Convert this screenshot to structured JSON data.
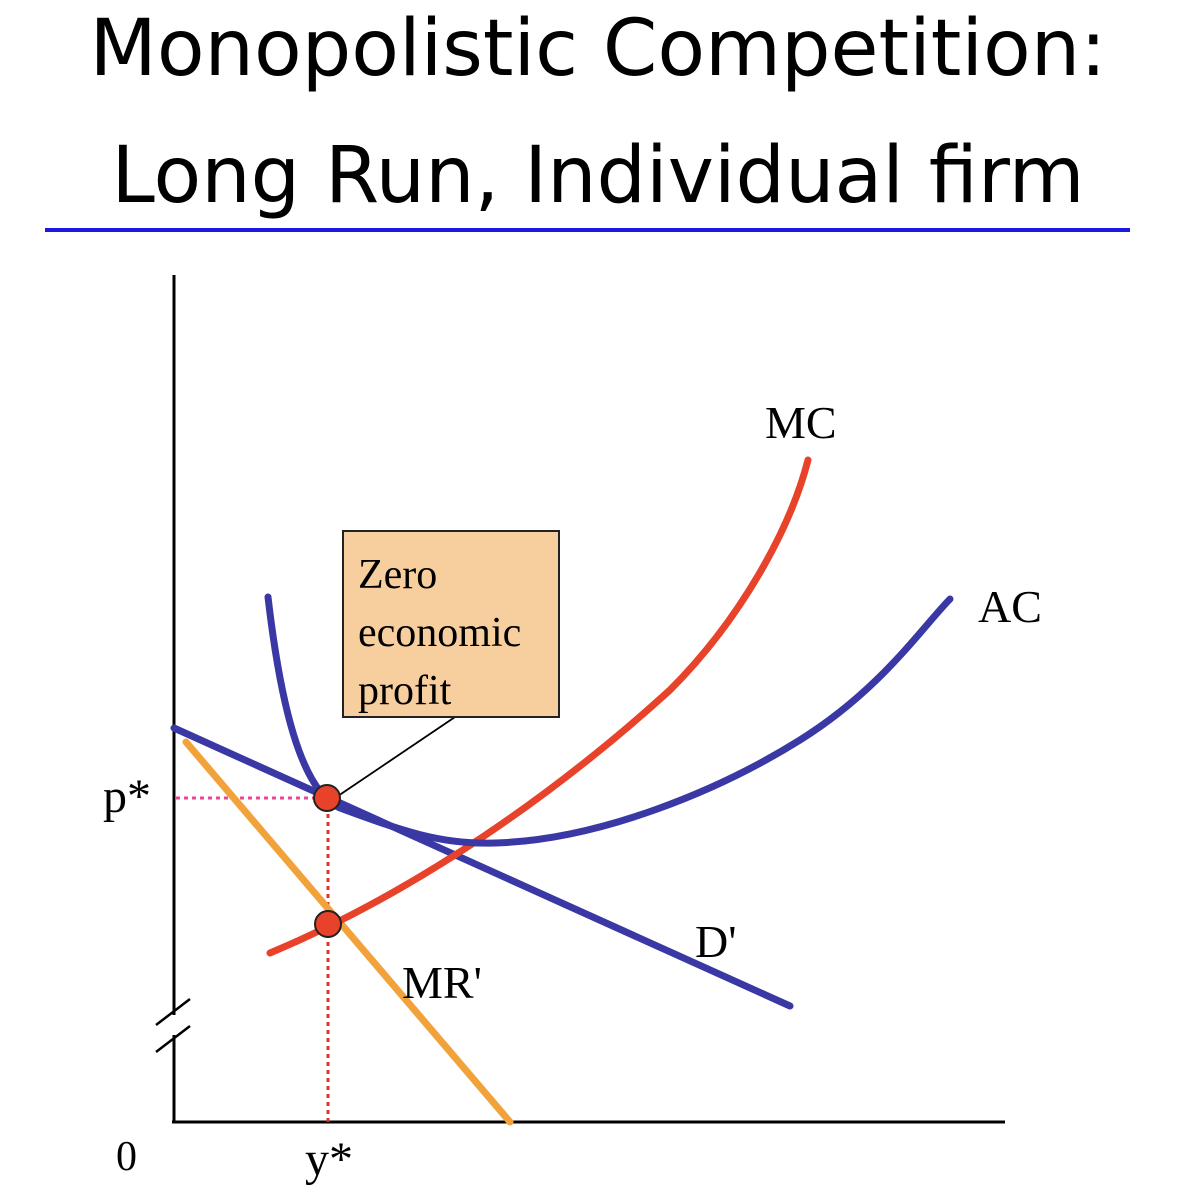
{
  "title": {
    "line1": "Monopolistic Competition:",
    "line2": "Long Run, Individual firm"
  },
  "colors": {
    "title_rule": "#1a1adf",
    "mc": "#e8432a",
    "ac": "#3a38a4",
    "demand": "#3a38a4",
    "mr": "#f2a23a",
    "guide_price": "#e04a9a",
    "guide_quantity": "#e0322a",
    "point_fill": "#e8432a",
    "callout_fill": "#f7cf9f"
  },
  "axes": {
    "origin_label": "0",
    "price_label": "p*",
    "quantity_label": "y*",
    "axis_break": true
  },
  "curves": {
    "mc_label": "MC",
    "ac_label": "AC",
    "demand_label": "D'",
    "mr_label": "MR'"
  },
  "callout": {
    "line1": "Zero",
    "line2": "economic",
    "line3": "profit"
  }
}
